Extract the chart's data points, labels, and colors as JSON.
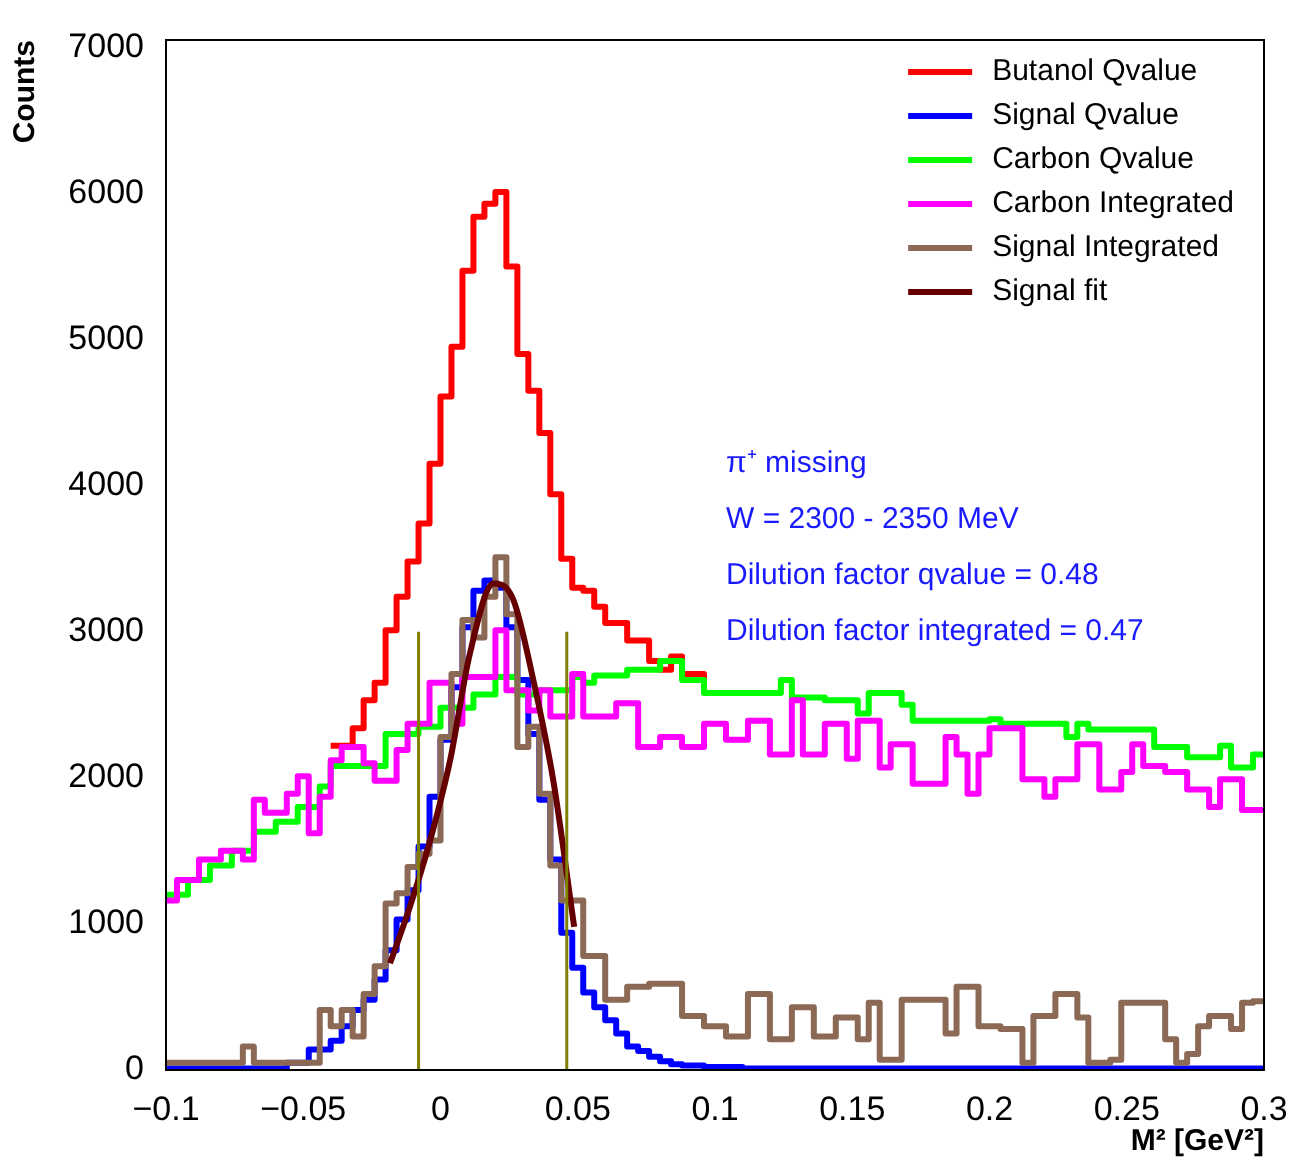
{
  "chart_data": {
    "type": "step",
    "xlabel": "M² [GeV²]",
    "ylabel": "Counts",
    "xlim": [
      -0.1,
      0.3
    ],
    "xticks": [
      -0.1,
      -0.05,
      0,
      0.05,
      0.1,
      0.15,
      0.2,
      0.25,
      0.3
    ],
    "ylim": [
      0,
      7050
    ],
    "yticks": [
      0,
      1000,
      2000,
      3000,
      4000,
      5000,
      6000,
      7000
    ],
    "grid": false,
    "legend": "top right",
    "annotations": [
      "π⁺ missing",
      "W = 2300 - 2350 MeV",
      "Dilution factor qvalue = 0.48",
      "Dilution factor integrated = 0.47"
    ],
    "series": [
      {
        "name": "Butanol Qvalue",
        "color": "#ff0000",
        "x": [
          -0.04,
          -0.032,
          -0.028,
          -0.024,
          -0.02,
          -0.016,
          -0.012,
          -0.008,
          -0.004,
          0,
          0.004,
          0.008,
          0.012,
          0.016,
          0.02,
          0.024,
          0.028,
          0.032,
          0.036,
          0.04,
          0.044,
          0.048,
          0.052,
          0.056,
          0.06,
          0.068,
          0.076,
          0.08,
          0.084,
          0.088,
          0.096
        ],
        "values": [
          2220,
          2340,
          2530,
          2650,
          3010,
          3240,
          3480,
          3740,
          4150,
          4610,
          4950,
          5470,
          5840,
          5930,
          6010,
          5500,
          4900,
          4650,
          4360,
          3940,
          3500,
          3300,
          3280,
          3170,
          3060,
          2940,
          2800,
          2740,
          2830,
          2710,
          2640
        ]
      },
      {
        "name": "Signal Qvalue",
        "color": "#0000ff",
        "x": [
          -0.1,
          -0.056,
          -0.048,
          -0.04,
          -0.036,
          -0.032,
          -0.028,
          -0.024,
          -0.02,
          -0.016,
          -0.012,
          -0.008,
          -0.004,
          0,
          0.004,
          0.008,
          0.012,
          0.016,
          0.02,
          0.024,
          0.028,
          0.032,
          0.036,
          0.04,
          0.044,
          0.048,
          0.052,
          0.056,
          0.06,
          0.064,
          0.068,
          0.072,
          0.076,
          0.08,
          0.084,
          0.088,
          0.096,
          0.11,
          0.3
        ],
        "values": [
          10,
          50,
          140,
          200,
          300,
          410,
          480,
          620,
          820,
          1030,
          1230,
          1530,
          1870,
          2260,
          2620,
          3030,
          3280,
          3350,
          3300,
          3030,
          2670,
          2300,
          1850,
          1440,
          940,
          700,
          530,
          430,
          340,
          250,
          160,
          130,
          90,
          60,
          40,
          30,
          20,
          10,
          10
        ]
      },
      {
        "name": "Carbon Qvalue",
        "color": "#00ff00",
        "x": [
          -0.1,
          -0.092,
          -0.084,
          -0.076,
          -0.068,
          -0.06,
          -0.052,
          -0.044,
          -0.04,
          -0.02,
          -0.008,
          0,
          0.012,
          0.02,
          0.028,
          0.036,
          0.048,
          0.052,
          0.056,
          0.068,
          0.08,
          0.088,
          0.096,
          0.124,
          0.128,
          0.14,
          0.152,
          0.156,
          0.168,
          0.172,
          0.2,
          0.204,
          0.228,
          0.232,
          0.236,
          0.26,
          0.272,
          0.284,
          0.288,
          0.296,
          0.3
        ],
        "values": [
          1200,
          1300,
          1400,
          1500,
          1630,
          1700,
          1800,
          1940,
          2080,
          2300,
          2350,
          2480,
          2570,
          2690,
          2570,
          2600,
          2690,
          2650,
          2700,
          2740,
          2800,
          2670,
          2580,
          2670,
          2550,
          2530,
          2440,
          2580,
          2500,
          2390,
          2400,
          2370,
          2280,
          2370,
          2330,
          2210,
          2140,
          2220,
          2070,
          2160,
          2160
        ]
      },
      {
        "name": "Carbon Integrated",
        "color": "#ff00ff",
        "x": [
          -0.1,
          -0.096,
          -0.088,
          -0.08,
          -0.072,
          -0.068,
          -0.064,
          -0.056,
          -0.052,
          -0.048,
          -0.044,
          -0.04,
          -0.036,
          -0.028,
          -0.024,
          -0.016,
          -0.012,
          -0.004,
          0.004,
          0.008,
          0.02,
          0.024,
          0.032,
          0.036,
          0.04,
          0.048,
          0.052,
          0.064,
          0.072,
          0.08,
          0.088,
          0.096,
          0.104,
          0.112,
          0.12,
          0.128,
          0.132,
          0.14,
          0.148,
          0.152,
          0.16,
          0.164,
          0.172,
          0.184,
          0.188,
          0.192,
          0.196,
          0.2,
          0.212,
          0.22,
          0.224,
          0.232,
          0.24,
          0.248,
          0.252,
          0.256,
          0.264,
          0.272,
          0.28,
          0.284,
          0.292,
          0.3
        ],
        "values": [
          1160,
          1300,
          1440,
          1500,
          1440,
          1850,
          1760,
          1890,
          2010,
          1620,
          1870,
          2120,
          2210,
          2100,
          1980,
          2190,
          2370,
          2650,
          2370,
          2690,
          3010,
          2600,
          2460,
          2600,
          2420,
          2710,
          2420,
          2510,
          2210,
          2280,
          2210,
          2370,
          2260,
          2390,
          2160,
          2530,
          2160,
          2370,
          2130,
          2390,
          2070,
          2230,
          1960,
          2280,
          2160,
          1890,
          2160,
          2340,
          1990,
          1870,
          1990,
          2230,
          1920,
          2040,
          2230,
          2080,
          2040,
          1920,
          1800,
          1990,
          1780,
          1780
        ]
      },
      {
        "name": "Signal Integrated",
        "color": "#8b6955",
        "x": [
          -0.1,
          -0.072,
          -0.068,
          -0.044,
          -0.04,
          -0.036,
          -0.032,
          -0.028,
          -0.024,
          -0.02,
          -0.016,
          -0.012,
          -0.008,
          -0.004,
          0,
          0.004,
          0.008,
          0.012,
          0.016,
          0.02,
          0.024,
          0.028,
          0.032,
          0.036,
          0.04,
          0.044,
          0.052,
          0.06,
          0.068,
          0.076,
          0.088,
          0.096,
          0.104,
          0.112,
          0.12,
          0.128,
          0.136,
          0.144,
          0.152,
          0.156,
          0.16,
          0.168,
          0.176,
          0.184,
          0.188,
          0.196,
          0.204,
          0.212,
          0.216,
          0.224,
          0.232,
          0.236,
          0.244,
          0.248,
          0.256,
          0.264,
          0.268,
          0.272,
          0.276,
          0.28,
          0.288,
          0.292,
          0.296,
          0.3
        ],
        "values": [
          50,
          160,
          50,
          410,
          300,
          410,
          230,
          520,
          710,
          1140,
          1210,
          1390,
          1480,
          1570,
          2280,
          2710,
          3080,
          2960,
          3240,
          3510,
          3120,
          2210,
          2350,
          1890,
          1400,
          1160,
          780,
          480,
          570,
          590,
          370,
          300,
          230,
          520,
          210,
          430,
          230,
          360,
          210,
          460,
          70,
          480,
          480,
          250,
          570,
          300,
          280,
          50,
          370,
          520,
          360,
          50,
          70,
          460,
          460,
          210,
          50,
          110,
          300,
          370,
          280,
          460,
          470,
          470
        ]
      },
      {
        "type": "line",
        "name": "Signal fit",
        "color": "#660000",
        "x": [
          -0.0184,
          -0.0111,
          -0.0038,
          0.0035,
          0.0107,
          0.0193,
          0.0265,
          0.0338,
          0.0411,
          0.0487
        ],
        "values": [
          730,
          1120,
          1570,
          2120,
          2850,
          3330,
          3220,
          2670,
          1980,
          980
        ]
      },
      {
        "type": "line",
        "color": "#808000",
        "x": [
          -0.008,
          -0.008
        ],
        "values": [
          0,
          3000
        ]
      },
      {
        "type": "line",
        "color": "#808000",
        "x": [
          0.046,
          0.046
        ],
        "values": [
          0,
          3000
        ]
      }
    ]
  }
}
